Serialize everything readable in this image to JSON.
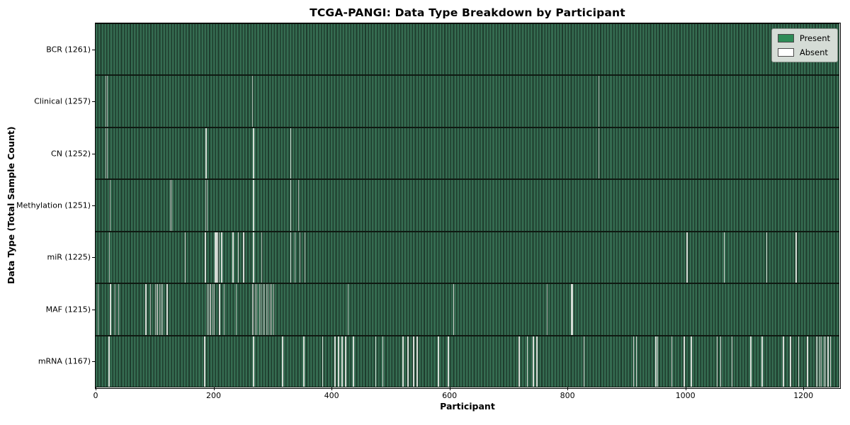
{
  "chart_data": {
    "type": "heatmap",
    "title": "TCGA-PANGI: Data Type Breakdown by Participant",
    "xlabel": "Participant",
    "ylabel": "Data Type (Total Sample Count)",
    "x_range": [
      0,
      1261
    ],
    "x_ticks": [
      0,
      200,
      400,
      600,
      800,
      1000,
      1200
    ],
    "total_participants": 1261,
    "grid": false,
    "legend": {
      "position": "upper right",
      "items": [
        {
          "label": "Present",
          "color": "#2e8b57"
        },
        {
          "label": "Absent",
          "color": "#ffffff"
        }
      ]
    },
    "colors": {
      "bar_light": "#356c51",
      "bar_dark": "#1e3c2d",
      "absent_line": "#a9b2ab",
      "absent_bright": "#d6dcd6",
      "row_border": "#0f1a12",
      "spine": "#000000",
      "legend_bg": "#d5dcd6"
    },
    "rows": [
      {
        "data_type": "BCR",
        "label": "BCR (1261)",
        "present_count": 1261,
        "absent_participants": []
      },
      {
        "data_type": "Clinical",
        "label": "Clinical (1257)",
        "present_count": 1257,
        "absent_participants": [
          17,
          19,
          265,
          853
        ]
      },
      {
        "data_type": "CN",
        "label": "CN (1252)",
        "present_count": 1252,
        "absent_participants": [
          17,
          19,
          186,
          187,
          267,
          268,
          330,
          331,
          853
        ]
      },
      {
        "data_type": "Methylation",
        "label": "Methylation (1251)",
        "present_count": 1251,
        "absent_participants": [
          24,
          126,
          128,
          186,
          188,
          267,
          268,
          330,
          331,
          343
        ]
      },
      {
        "data_type": "miR",
        "label": "miR (1225)",
        "present_count": 1225,
        "absent_participants": [
          23,
          151,
          152,
          185,
          186,
          202,
          203,
          204,
          205,
          207,
          209,
          212,
          213,
          214,
          232,
          233,
          241,
          242,
          250,
          251,
          267,
          268,
          281,
          330,
          331,
          337,
          346,
          354,
          1002,
          1003,
          1065,
          1066,
          1137,
          1138,
          1187,
          1188
        ]
      },
      {
        "data_type": "MAF",
        "label": "MAF (1215)",
        "present_count": 1215,
        "absent_participants": [
          4,
          24,
          25,
          32,
          38,
          84,
          85,
          92,
          101,
          103,
          105,
          108,
          110,
          113,
          120,
          121,
          189,
          191,
          193,
          195,
          198,
          200,
          209,
          210,
          217,
          238,
          265,
          267,
          270,
          273,
          277,
          280,
          283,
          286,
          289,
          292,
          295,
          298,
          301,
          428,
          606,
          607,
          765,
          806,
          807,
          808
        ]
      },
      {
        "data_type": "mRNA",
        "label": "mRNA (1167)",
        "present_count": 1167,
        "absent_participants": [
          22,
          23,
          184,
          185,
          267,
          268,
          316,
          317,
          352,
          353,
          384,
          385,
          405,
          406,
          411,
          412,
          417,
          418,
          423,
          424,
          436,
          437,
          474,
          475,
          486,
          487,
          520,
          521,
          528,
          529,
          530,
          538,
          539,
          544,
          545,
          580,
          581,
          597,
          598,
          717,
          718,
          731,
          732,
          741,
          742,
          747,
          748,
          827,
          828,
          911,
          912,
          916,
          917,
          949,
          950,
          952,
          953,
          976,
          977,
          997,
          998,
          1009,
          1010,
          1053,
          1054,
          1059,
          1060,
          1078,
          1079,
          1110,
          1111,
          1129,
          1130,
          1165,
          1166,
          1177,
          1178,
          1191,
          1192,
          1206,
          1207,
          1221,
          1222,
          1224,
          1227,
          1228,
          1230,
          1234,
          1235,
          1237,
          1241,
          1242,
          1245,
          1246
        ]
      }
    ]
  }
}
